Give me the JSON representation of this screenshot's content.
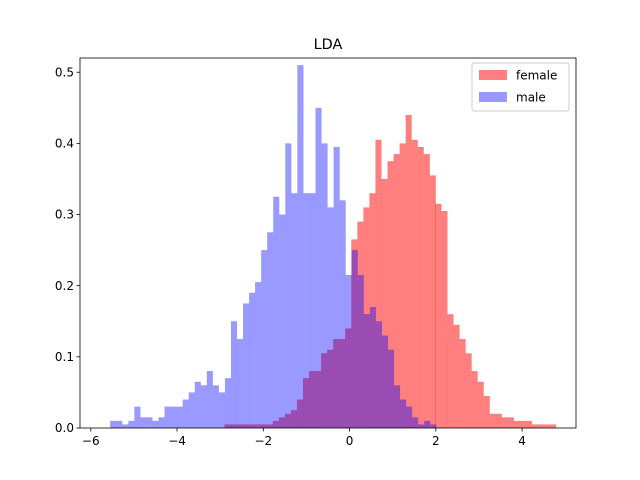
{
  "chart_data": {
    "type": "histogram",
    "title": "LDA",
    "xlabel": "",
    "ylabel": "",
    "xlim": [
      -6.25,
      5.25
    ],
    "ylim": [
      0,
      0.52
    ],
    "xticks": [
      -6,
      -4,
      -2,
      0,
      2,
      4
    ],
    "xtick_labels": [
      "−6",
      "−4",
      "−2",
      "0",
      "2",
      "4"
    ],
    "yticks": [
      0.0,
      0.1,
      0.2,
      0.3,
      0.4,
      0.5
    ],
    "ytick_labels": [
      "0.0",
      "0.1",
      "0.2",
      "0.3",
      "0.4",
      "0.5"
    ],
    "grid": false,
    "legend_position": "upper right",
    "density": true,
    "bin_width": 0.141,
    "series": [
      {
        "name": "female",
        "color": "#ff0000",
        "alpha": 0.5,
        "bins": [
          [
            -2.9,
            0.005
          ],
          [
            -2.76,
            0.005
          ],
          [
            -2.62,
            0.005
          ],
          [
            -2.48,
            0.005
          ],
          [
            -2.34,
            0.005
          ],
          [
            -2.2,
            0.005
          ],
          [
            -2.06,
            0.005
          ],
          [
            -1.92,
            0.005
          ],
          [
            -1.78,
            0.01
          ],
          [
            -1.64,
            0.015
          ],
          [
            -1.5,
            0.02
          ],
          [
            -1.36,
            0.025
          ],
          [
            -1.22,
            0.04
          ],
          [
            -1.08,
            0.07
          ],
          [
            -0.94,
            0.08
          ],
          [
            -0.8,
            0.08
          ],
          [
            -0.66,
            0.105
          ],
          [
            -0.52,
            0.11
          ],
          [
            -0.38,
            0.125
          ],
          [
            -0.24,
            0.125
          ],
          [
            -0.1,
            0.14
          ],
          [
            0.04,
            0.265
          ],
          [
            0.18,
            0.29
          ],
          [
            0.32,
            0.31
          ],
          [
            0.46,
            0.33
          ],
          [
            0.6,
            0.405
          ],
          [
            0.74,
            0.35
          ],
          [
            0.88,
            0.375
          ],
          [
            1.02,
            0.385
          ],
          [
            1.16,
            0.4
          ],
          [
            1.3,
            0.44
          ],
          [
            1.44,
            0.405
          ],
          [
            1.58,
            0.395
          ],
          [
            1.72,
            0.385
          ],
          [
            1.86,
            0.355
          ],
          [
            1.99,
            0.315
          ],
          [
            2.13,
            0.305
          ],
          [
            2.27,
            0.16
          ],
          [
            2.41,
            0.145
          ],
          [
            2.55,
            0.125
          ],
          [
            2.69,
            0.105
          ],
          [
            2.83,
            0.08
          ],
          [
            2.97,
            0.065
          ],
          [
            3.11,
            0.045
          ],
          [
            3.25,
            0.02
          ],
          [
            3.39,
            0.02
          ],
          [
            3.53,
            0.015
          ],
          [
            3.67,
            0.015
          ],
          [
            3.81,
            0.01
          ],
          [
            3.95,
            0.01
          ],
          [
            4.09,
            0.01
          ],
          [
            4.23,
            0.005
          ],
          [
            4.37,
            0.005
          ],
          [
            4.51,
            0.005
          ],
          [
            4.65,
            0.005
          ]
        ]
      },
      {
        "name": "male",
        "color": "#0000ff",
        "alpha": 0.4,
        "bins": [
          [
            -5.55,
            0.01
          ],
          [
            -5.41,
            0.01
          ],
          [
            -5.27,
            0.005
          ],
          [
            -5.13,
            0.01
          ],
          [
            -4.99,
            0.03
          ],
          [
            -4.85,
            0.015
          ],
          [
            -4.71,
            0.015
          ],
          [
            -4.57,
            0.01
          ],
          [
            -4.43,
            0.015
          ],
          [
            -4.29,
            0.03
          ],
          [
            -4.15,
            0.03
          ],
          [
            -4.01,
            0.03
          ],
          [
            -3.87,
            0.04
          ],
          [
            -3.73,
            0.05
          ],
          [
            -3.59,
            0.065
          ],
          [
            -3.45,
            0.06
          ],
          [
            -3.31,
            0.08
          ],
          [
            -3.17,
            0.06
          ],
          [
            -3.03,
            0.05
          ],
          [
            -2.89,
            0.07
          ],
          [
            -2.75,
            0.15
          ],
          [
            -2.61,
            0.125
          ],
          [
            -2.47,
            0.175
          ],
          [
            -2.33,
            0.19
          ],
          [
            -2.19,
            0.205
          ],
          [
            -2.05,
            0.25
          ],
          [
            -1.91,
            0.275
          ],
          [
            -1.77,
            0.325
          ],
          [
            -1.63,
            0.3
          ],
          [
            -1.49,
            0.4
          ],
          [
            -1.35,
            0.33
          ],
          [
            -1.21,
            0.51
          ],
          [
            -1.07,
            0.33
          ],
          [
            -0.93,
            0.33
          ],
          [
            -0.79,
            0.45
          ],
          [
            -0.65,
            0.4
          ],
          [
            -0.51,
            0.31
          ],
          [
            -0.37,
            0.395
          ],
          [
            -0.23,
            0.32
          ],
          [
            -0.09,
            0.215
          ],
          [
            0.05,
            0.25
          ],
          [
            0.19,
            0.215
          ],
          [
            0.33,
            0.16
          ],
          [
            0.47,
            0.17
          ],
          [
            0.61,
            0.15
          ],
          [
            0.75,
            0.13
          ],
          [
            0.89,
            0.11
          ],
          [
            1.03,
            0.06
          ],
          [
            1.17,
            0.04
          ],
          [
            1.31,
            0.03
          ],
          [
            1.45,
            0.015
          ],
          [
            1.59,
            0.005
          ],
          [
            1.73,
            0.01
          ],
          [
            1.87,
            0.005
          ]
        ]
      }
    ],
    "legend": [
      {
        "label": "female",
        "color": "#ff0000",
        "alpha": 0.5
      },
      {
        "label": "male",
        "color": "#0000ff",
        "alpha": 0.4
      }
    ]
  }
}
